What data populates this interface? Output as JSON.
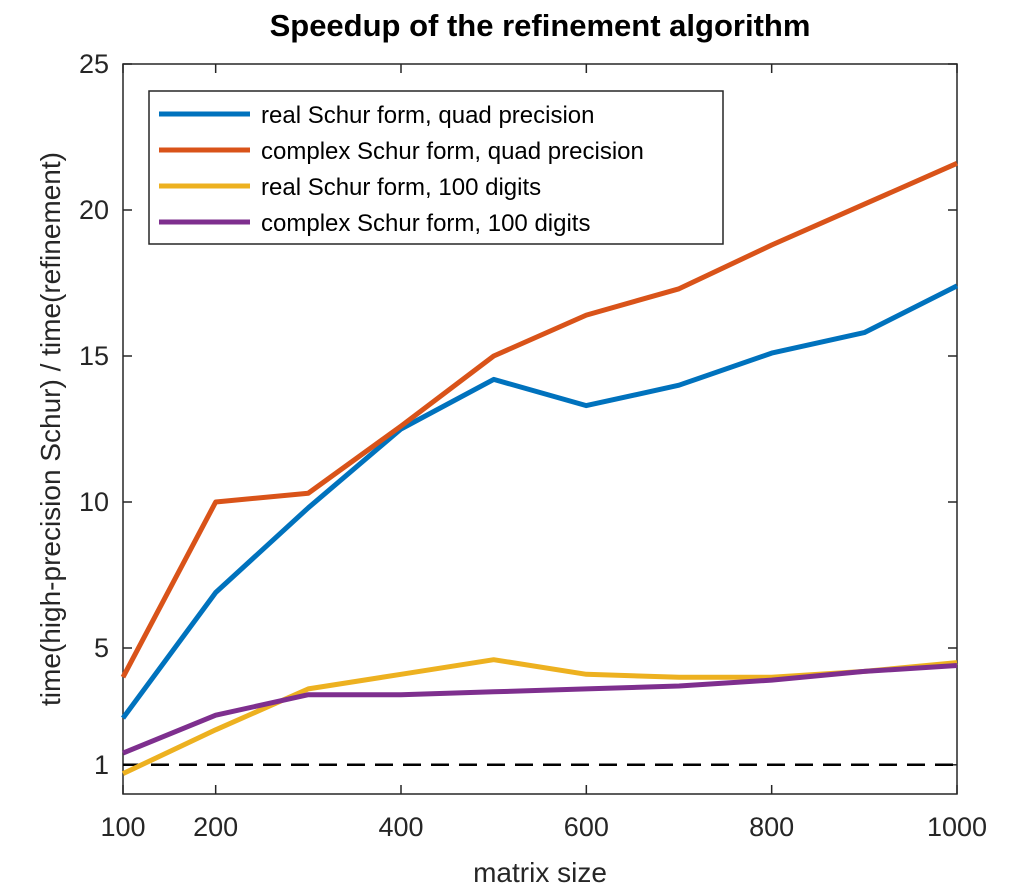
{
  "chart_data": {
    "type": "line",
    "title": "Speedup of the refinement algorithm",
    "xlabel": "matrix size",
    "ylabel": "time(high-precision Schur) / time(refinement)",
    "xlim": [
      100,
      1000
    ],
    "ylim": [
      0,
      25
    ],
    "x_ticks": [
      100,
      200,
      400,
      600,
      800,
      1000
    ],
    "y_ticks": [
      1,
      5,
      10,
      15,
      20,
      25
    ],
    "legend_position": "top-left",
    "grid": false,
    "x": [
      100,
      200,
      300,
      400,
      500,
      600,
      700,
      800,
      900,
      1000
    ],
    "series": [
      {
        "name": "real Schur form, quad precision",
        "color": "#0072BD",
        "values": [
          2.6,
          6.9,
          9.8,
          12.5,
          14.2,
          13.3,
          14.0,
          15.1,
          15.8,
          17.4
        ]
      },
      {
        "name": "complex Schur form, quad precision",
        "color": "#D95319",
        "values": [
          4.0,
          10.0,
          10.3,
          12.6,
          15.0,
          16.4,
          17.3,
          18.8,
          20.2,
          21.6
        ]
      },
      {
        "name": "real Schur form, 100 digits",
        "color": "#EDB120",
        "values": [
          0.7,
          2.2,
          3.6,
          4.1,
          4.6,
          4.1,
          4.0,
          4.0,
          4.2,
          4.5
        ]
      },
      {
        "name": "complex Schur form, 100 digits",
        "color": "#7E2F8E",
        "values": [
          1.4,
          2.7,
          3.4,
          3.4,
          3.5,
          3.6,
          3.7,
          3.9,
          4.2,
          4.4
        ]
      }
    ],
    "reference_line": {
      "y": 1,
      "style": "dashed",
      "color": "#000000"
    }
  }
}
